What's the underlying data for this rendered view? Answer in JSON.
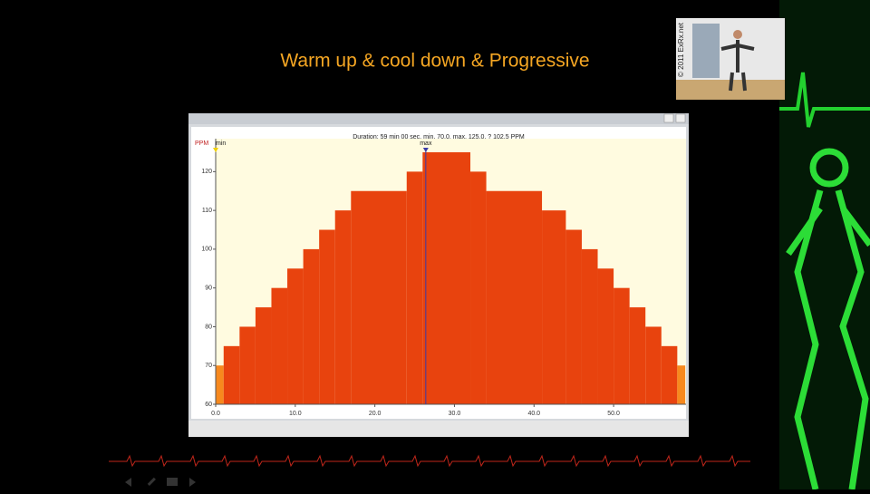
{
  "chart_data": {
    "type": "histogram",
    "title": "Warm up & cool down & Progressive",
    "subtitle": "Duration: 59 min 00 sec, min. 70.0, max. 125.0, ? 102.5 PPM",
    "y_label": "PPM",
    "credit": "© 2011 ExRx.net",
    "bins": [
      0,
      1,
      3,
      5,
      7,
      9,
      11,
      13,
      15,
      17,
      24,
      26,
      32,
      34,
      41,
      44,
      46,
      48,
      50,
      52,
      54,
      56,
      58,
      59
    ],
    "values": [
      70,
      75,
      80,
      85,
      90,
      95,
      100,
      105,
      110,
      115,
      120,
      125,
      120,
      115,
      110,
      105,
      100,
      95,
      90,
      85,
      80,
      75,
      70
    ],
    "color": "#e8430e",
    "edge_color": "#f7891e",
    "min_marker": {
      "label": "min",
      "x": 0
    },
    "max_marker": {
      "label": "max",
      "x": 26.4
    },
    "xlim": [
      0,
      59.1
    ],
    "ylim": [
      60,
      128.5
    ],
    "xticks": [
      {
        "value": 0,
        "label": "0.0"
      },
      {
        "value": 10,
        "label": "10.0"
      },
      {
        "value": 20,
        "label": "20.0"
      },
      {
        "value": 30,
        "label": "30.0"
      },
      {
        "value": 40,
        "label": "40.0"
      },
      {
        "value": 50,
        "label": "50.0"
      }
    ],
    "yticks": [
      60,
      70,
      80,
      90,
      100,
      110,
      120
    ]
  }
}
